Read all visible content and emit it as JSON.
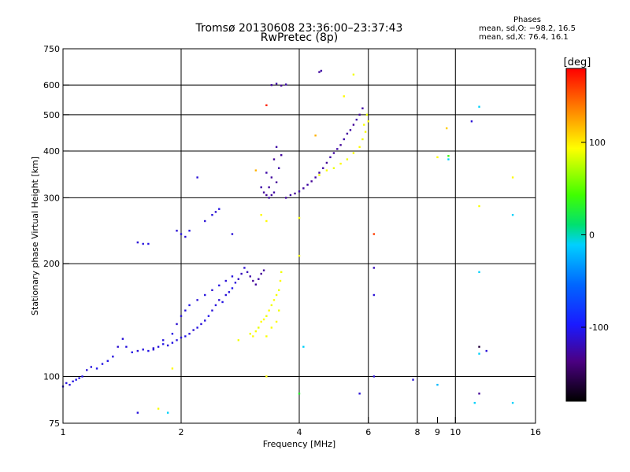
{
  "header": {
    "title": "Tromsø 20130608 23:36:00–23:37:43",
    "subtitle": "RwPretec (8p)"
  },
  "phases_box": {
    "heading": "Phases",
    "line_o": "mean, sd,O: −98.2, 16.5",
    "line_x": "mean, sd,X:  76.4, 16.1"
  },
  "colorbar": {
    "title": "[deg]",
    "range": [
      -180,
      180
    ],
    "ticks": [
      {
        "value": 100,
        "label": "100"
      },
      {
        "value": 0,
        "label": "0"
      },
      {
        "value": -100,
        "label": "-100"
      }
    ]
  },
  "chart_data": {
    "type": "scatter",
    "xlabel": "Frequency [MHz]",
    "ylabel": "Stationary phase Virtual Height [km]",
    "xscale": "log",
    "yscale": "log",
    "xlim": [
      1,
      16
    ],
    "ylim": [
      75,
      750
    ],
    "grid": true,
    "xticks": [
      {
        "value": 1,
        "label": "1"
      },
      {
        "value": 2,
        "label": "2"
      },
      {
        "value": 4,
        "label": "4"
      },
      {
        "value": 6,
        "label": "6"
      },
      {
        "value": 8,
        "label": "8"
      },
      {
        "value": 9,
        "label": "9"
      },
      {
        "value": 10,
        "label": "10"
      },
      {
        "value": 16,
        "label": "16"
      }
    ],
    "yticks": [
      {
        "value": 75,
        "label": "75"
      },
      {
        "value": 100,
        "label": "100"
      },
      {
        "value": 200,
        "label": "200"
      },
      {
        "value": 300,
        "label": "300"
      },
      {
        "value": 400,
        "label": "400"
      },
      {
        "value": 500,
        "label": "500"
      },
      {
        "value": 600,
        "label": "600"
      },
      {
        "value": 750,
        "label": "750"
      }
    ],
    "major_grid_x": [
      2,
      4,
      6,
      8,
      10
    ],
    "major_grid_y": [
      100,
      200,
      300,
      400,
      500,
      600
    ],
    "points": [
      [
        1.0,
        94,
        -105
      ],
      [
        1.02,
        96,
        -108
      ],
      [
        1.04,
        95,
        -110
      ],
      [
        1.06,
        97,
        -106
      ],
      [
        1.08,
        98,
        -104
      ],
      [
        1.1,
        99,
        -107
      ],
      [
        1.12,
        100,
        -105
      ],
      [
        1.15,
        104,
        -110
      ],
      [
        1.18,
        106,
        -108
      ],
      [
        1.22,
        105,
        -104
      ],
      [
        1.26,
        108,
        -106
      ],
      [
        1.3,
        110,
        -105
      ],
      [
        1.34,
        113,
        -108
      ],
      [
        1.38,
        120,
        -112
      ],
      [
        1.42,
        126,
        -110
      ],
      [
        1.45,
        120,
        -108
      ],
      [
        1.5,
        116,
        -105
      ],
      [
        1.55,
        117,
        -110
      ],
      [
        1.6,
        118,
        -108
      ],
      [
        1.65,
        117,
        -106
      ],
      [
        1.7,
        119,
        -112
      ],
      [
        1.75,
        120,
        -108
      ],
      [
        1.8,
        122,
        -105
      ],
      [
        1.85,
        121,
        -110
      ],
      [
        1.9,
        123,
        -106
      ],
      [
        1.95,
        125,
        -108
      ],
      [
        2.0,
        127,
        -110
      ],
      [
        2.05,
        128,
        -105
      ],
      [
        2.1,
        130,
        -108
      ],
      [
        2.15,
        133,
        -112
      ],
      [
        2.2,
        135,
        -106
      ],
      [
        2.25,
        138,
        -110
      ],
      [
        2.3,
        141,
        -108
      ],
      [
        2.35,
        145,
        -104
      ],
      [
        2.4,
        150,
        -110
      ],
      [
        2.45,
        155,
        -108
      ],
      [
        2.5,
        160,
        -112
      ],
      [
        2.55,
        158,
        -106
      ],
      [
        2.6,
        165,
        -110
      ],
      [
        2.65,
        168,
        -108
      ],
      [
        2.7,
        172,
        -104
      ],
      [
        2.75,
        178,
        -110
      ],
      [
        2.8,
        182,
        -115
      ],
      [
        2.85,
        188,
        -118
      ],
      [
        2.9,
        195,
        -112
      ],
      [
        2.95,
        190,
        -120
      ],
      [
        3.0,
        185,
        -125
      ],
      [
        3.05,
        180,
        -130
      ],
      [
        3.1,
        176,
        -128
      ],
      [
        3.15,
        182,
        -125
      ],
      [
        3.2,
        188,
        -130
      ],
      [
        3.25,
        192,
        -128
      ],
      [
        1.7,
        118,
        -110
      ],
      [
        1.8,
        125,
        -108
      ],
      [
        1.9,
        130,
        -106
      ],
      [
        1.95,
        138,
        -112
      ],
      [
        2.0,
        145,
        -110
      ],
      [
        2.05,
        150,
        -108
      ],
      [
        2.1,
        155,
        -104
      ],
      [
        2.2,
        160,
        -110
      ],
      [
        2.3,
        165,
        -108
      ],
      [
        2.4,
        170,
        -112
      ],
      [
        2.5,
        175,
        -106
      ],
      [
        2.6,
        180,
        -110
      ],
      [
        2.7,
        185,
        -108
      ],
      [
        1.55,
        228,
        -110
      ],
      [
        1.6,
        226,
        -108
      ],
      [
        1.65,
        226,
        -106
      ],
      [
        1.95,
        245,
        -110
      ],
      [
        2.0,
        240,
        -108
      ],
      [
        2.05,
        236,
        -112
      ],
      [
        2.1,
        245,
        -106
      ],
      [
        2.3,
        260,
        -110
      ],
      [
        2.4,
        270,
        -108
      ],
      [
        2.45,
        275,
        -112
      ],
      [
        2.5,
        280,
        -106
      ],
      [
        2.2,
        340,
        -110
      ],
      [
        3.0,
        130,
        90
      ],
      [
        3.05,
        128,
        95
      ],
      [
        3.1,
        132,
        92
      ],
      [
        3.15,
        135,
        88
      ],
      [
        3.2,
        140,
        95
      ],
      [
        3.25,
        142,
        92
      ],
      [
        3.3,
        145,
        90
      ],
      [
        3.35,
        150,
        95
      ],
      [
        3.4,
        155,
        90
      ],
      [
        3.45,
        160,
        94
      ],
      [
        3.5,
        165,
        92
      ],
      [
        3.55,
        170,
        88
      ],
      [
        3.58,
        180,
        95
      ],
      [
        3.6,
        190,
        90
      ],
      [
        3.4,
        135,
        92
      ],
      [
        3.5,
        140,
        95
      ],
      [
        3.55,
        150,
        90
      ],
      [
        3.3,
        128,
        92
      ],
      [
        2.8,
        125,
        90
      ],
      [
        3.2,
        320,
        -125
      ],
      [
        3.25,
        310,
        -128
      ],
      [
        3.3,
        305,
        -130
      ],
      [
        3.35,
        300,
        -125
      ],
      [
        3.4,
        305,
        -128
      ],
      [
        3.45,
        310,
        -126
      ],
      [
        3.5,
        330,
        -130
      ],
      [
        3.55,
        360,
        -125
      ],
      [
        3.6,
        390,
        -128
      ],
      [
        3.5,
        410,
        -126
      ],
      [
        3.45,
        380,
        -130
      ],
      [
        3.4,
        340,
        -128
      ],
      [
        3.3,
        350,
        -125
      ],
      [
        3.35,
        320,
        -128
      ],
      [
        3.7,
        300,
        -128
      ],
      [
        3.8,
        305,
        -126
      ],
      [
        3.9,
        308,
        -130
      ],
      [
        4.0,
        312,
        -125
      ],
      [
        4.1,
        318,
        -128
      ],
      [
        4.2,
        325,
        -126
      ],
      [
        4.3,
        332,
        -130
      ],
      [
        4.4,
        340,
        -125
      ],
      [
        4.5,
        350,
        -128
      ],
      [
        4.6,
        360,
        -126
      ],
      [
        4.7,
        372,
        -130
      ],
      [
        4.8,
        385,
        -125
      ],
      [
        4.9,
        395,
        -128
      ],
      [
        5.0,
        405,
        -126
      ],
      [
        5.1,
        415,
        -130
      ],
      [
        5.2,
        430,
        -125
      ],
      [
        5.3,
        445,
        -128
      ],
      [
        5.4,
        455,
        -126
      ],
      [
        5.5,
        470,
        -130
      ],
      [
        5.6,
        485,
        -125
      ],
      [
        5.7,
        500,
        -128
      ],
      [
        5.8,
        520,
        -126
      ],
      [
        4.5,
        345,
        90
      ],
      [
        4.7,
        355,
        92
      ],
      [
        4.9,
        360,
        88
      ],
      [
        5.1,
        370,
        95
      ],
      [
        5.3,
        380,
        90
      ],
      [
        5.5,
        395,
        92
      ],
      [
        5.7,
        410,
        95
      ],
      [
        5.8,
        430,
        90
      ],
      [
        5.9,
        450,
        92
      ],
      [
        6.0,
        480,
        95
      ],
      [
        5.95,
        500,
        88
      ],
      [
        5.85,
        470,
        92
      ],
      [
        3.4,
        600,
        -128
      ],
      [
        3.5,
        605,
        -126
      ],
      [
        3.6,
        598,
        -130
      ],
      [
        3.7,
        602,
        -125
      ],
      [
        4.5,
        650,
        -128
      ],
      [
        4.55,
        655,
        -126
      ],
      [
        5.2,
        560,
        95
      ],
      [
        5.5,
        640,
        90
      ],
      [
        1.55,
        80,
        -108
      ],
      [
        1.75,
        82,
        92
      ],
      [
        1.85,
        80,
        -10
      ],
      [
        1.9,
        105,
        95
      ],
      [
        3.3,
        100,
        95
      ],
      [
        4.0,
        90,
        30
      ],
      [
        4.0,
        265,
        92
      ],
      [
        4.0,
        210,
        92
      ],
      [
        4.1,
        120,
        -10
      ],
      [
        5.7,
        90,
        -110
      ],
      [
        6.2,
        100,
        -110
      ],
      [
        6.2,
        195,
        -120
      ],
      [
        6.2,
        165,
        -110
      ],
      [
        6.2,
        240,
        160
      ],
      [
        7.8,
        98,
        -110
      ],
      [
        9.0,
        95,
        -20
      ],
      [
        9.5,
        460,
        110
      ],
      [
        9.6,
        388,
        40
      ],
      [
        9.6,
        380,
        -10
      ],
      [
        9.0,
        385,
        95
      ],
      [
        11.0,
        480,
        -110
      ],
      [
        11.5,
        525,
        -10
      ],
      [
        11.5,
        285,
        92
      ],
      [
        11.5,
        190,
        -10
      ],
      [
        11.5,
        120,
        -160
      ],
      [
        11.5,
        115,
        -10
      ],
      [
        12.0,
        117,
        -110
      ],
      [
        11.5,
        90,
        -130
      ],
      [
        11.2,
        85,
        -10
      ],
      [
        14.0,
        85,
        -10
      ],
      [
        14.0,
        270,
        -10
      ],
      [
        14.0,
        340,
        95
      ],
      [
        3.1,
        355,
        120
      ],
      [
        3.2,
        270,
        95
      ],
      [
        3.3,
        260,
        95
      ],
      [
        2.7,
        240,
        -110
      ],
      [
        4.4,
        440,
        120
      ],
      [
        3.3,
        530,
        170
      ]
    ]
  }
}
